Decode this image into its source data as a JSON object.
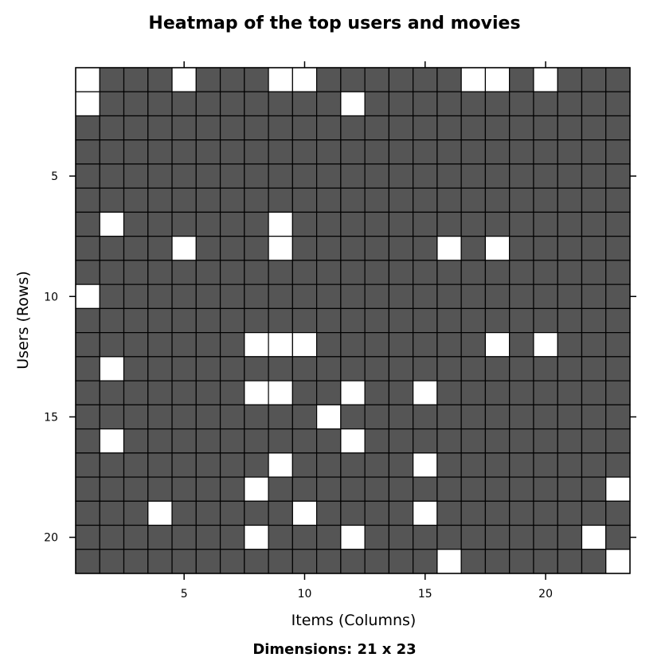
{
  "chart_data": {
    "type": "heatmap",
    "title": "Heatmap of the top users and movies",
    "xlabel": "Items (Columns)",
    "ylabel": "Users (Rows)",
    "sub": "Dimensions: 21 x 23",
    "n_rows": 21,
    "n_cols": 23,
    "xticks": [
      5,
      10,
      15,
      20
    ],
    "yticks": [
      5,
      10,
      15,
      20
    ],
    "legend": "none",
    "grid": true,
    "colors": {
      "filled": "#555555",
      "empty": "#ffffff",
      "border": "#000000"
    },
    "empty_cells": [
      [
        1,
        1
      ],
      [
        1,
        5
      ],
      [
        1,
        9
      ],
      [
        1,
        10
      ],
      [
        1,
        17
      ],
      [
        1,
        18
      ],
      [
        1,
        20
      ],
      [
        2,
        1
      ],
      [
        2,
        12
      ],
      [
        7,
        2
      ],
      [
        7,
        9
      ],
      [
        8,
        5
      ],
      [
        8,
        9
      ],
      [
        8,
        16
      ],
      [
        8,
        18
      ],
      [
        10,
        1
      ],
      [
        12,
        8
      ],
      [
        12,
        9
      ],
      [
        12,
        10
      ],
      [
        12,
        18
      ],
      [
        12,
        20
      ],
      [
        13,
        2
      ],
      [
        14,
        8
      ],
      [
        14,
        9
      ],
      [
        14,
        12
      ],
      [
        14,
        15
      ],
      [
        15,
        11
      ],
      [
        16,
        2
      ],
      [
        16,
        12
      ],
      [
        17,
        9
      ],
      [
        17,
        15
      ],
      [
        18,
        8
      ],
      [
        18,
        23
      ],
      [
        19,
        4
      ],
      [
        19,
        10
      ],
      [
        19,
        15
      ],
      [
        20,
        8
      ],
      [
        20,
        12
      ],
      [
        20,
        22
      ],
      [
        21,
        16
      ],
      [
        21,
        23
      ]
    ]
  }
}
